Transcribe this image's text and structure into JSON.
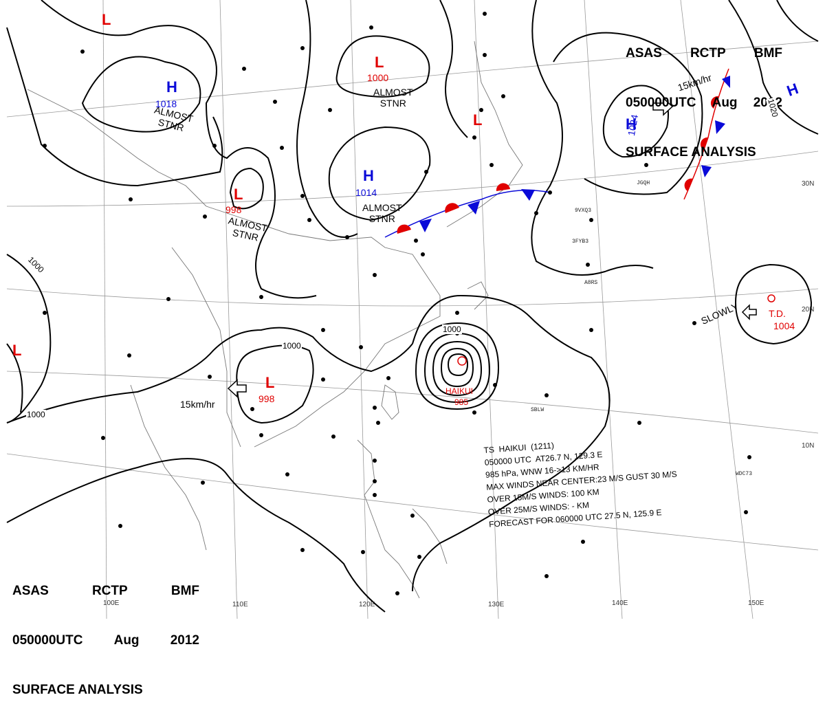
{
  "header": {
    "line1": [
      "ASAS",
      "RCTP",
      "BMF"
    ],
    "line2": [
      "050000UTC",
      "Aug",
      "2012"
    ],
    "line3": "SURFACE ANALYSIS"
  },
  "systems": {
    "low_nw": {
      "letter": "L"
    },
    "high_1018": {
      "letter": "H",
      "value": "1018",
      "note": "ALMOST\nSTNR"
    },
    "low_1000_north": {
      "letter": "L",
      "value": "1000",
      "note": "ALMOST\nSTNR"
    },
    "low_998_north": {
      "letter": "L",
      "value": "998",
      "note": "ALMOST\nSTNR"
    },
    "high_1014": {
      "letter": "H",
      "value": "1014",
      "note": "ALMOST\nSTNR"
    },
    "low_front": {
      "letter": "L"
    },
    "high_1024": {
      "letter": "H",
      "value": "1024",
      "motion": "15km/hr"
    },
    "high_ne": {
      "letter": "H"
    },
    "low_west": {
      "letter": "L"
    },
    "low_998_south": {
      "letter": "L",
      "value": "998",
      "motion": "15km/hr"
    },
    "typhoon": {
      "label": "HAIKUI",
      "value": "985"
    },
    "td": {
      "label": "T.D.",
      "value": "1004",
      "motion": "SLOWLY"
    }
  },
  "isobars": {
    "a": "1000",
    "b": "1000",
    "c": "1000",
    "d": "1000",
    "e": "1020"
  },
  "typhoon_info": [
    "TS  HAIKUI  (1211)",
    "050000 UTC  AT26.7 N, 129.3 E",
    "985 hPa, WNW 16->13 KM/HR",
    "MAX WINDS NEAR CENTER:23 M/S GUST 30 M/S",
    "OVER 15M/S WINDS: 100 KM",
    "OVER 25M/S WINDS: - KM",
    "FORECAST FOR 060000 UTC 27.5 N, 125.9 E"
  ],
  "grid_labels": {
    "lon": [
      "100E",
      "110E",
      "120E",
      "130E",
      "140E",
      "150E"
    ],
    "lat": [
      "30N",
      "20N",
      "10N"
    ]
  },
  "ships": [
    "JGQH",
    "9VXQ3",
    "3FYB3",
    "A8RS",
    "SBLW",
    "WDC73"
  ],
  "colors": {
    "low": "#e00000",
    "high": "#0a0ad8",
    "front_warm": "#e00000",
    "front_cold": "#0a0ad8",
    "ink": "#000000"
  }
}
